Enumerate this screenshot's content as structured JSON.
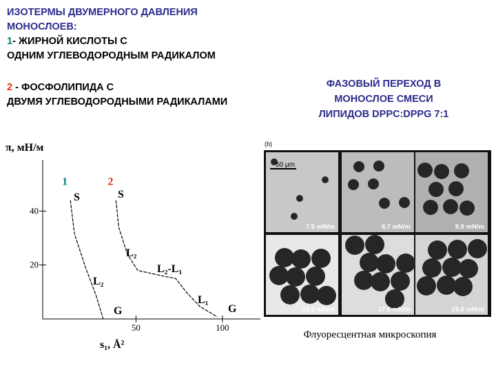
{
  "header": {
    "title_lines": [
      "ИЗОТЕРМЫ ДВУМЕРНОГО ДАВЛЕНИЯ",
      "МОНОСЛОЕВ:"
    ],
    "item1_lines": [
      "- ЖИРНОЙ КИСЛОТЫ С",
      "ОДНИМ УГЛЕВОДОРОДНЫМ РАДИКАЛОМ"
    ],
    "item2_lines": [
      " - ФОСФОЛИПИДА С",
      "ДВУМЯ УГЛЕВОДОРОДНЫМИ РАДИКАЛАМИ"
    ]
  },
  "right_title_lines": [
    "ФАЗОВЫЙ ПЕРЕХОД В",
    "МОНОСЛОЕ СМЕСИ",
    "ЛИПИДОВ DPPC:DPPG 7:1"
  ],
  "micrograph": {
    "panel_label": "(b)",
    "scale_bar": "50 μm",
    "pressures": [
      "7.5 mN/m",
      "8.7 mN/m",
      "9.9 mN/m",
      "13.2 mN/m",
      "17.6 mN/m",
      "25.0 mN/m"
    ],
    "caption": "Флуоресцентная микроскопия"
  },
  "chart_data": {
    "type": "line",
    "y_label": "π, мН/м",
    "x_label": "s₁, Å²",
    "xlim": [
      -4,
      122
    ],
    "ylim": [
      0,
      59
    ],
    "xticks": [
      50,
      100
    ],
    "yticks": [
      20,
      40
    ],
    "series": [
      {
        "name": "1",
        "color": "#000000",
        "label_color": "#008080",
        "x": [
          12,
          14.4,
          21,
          27,
          31
        ],
        "values": [
          44,
          31.5,
          18.7,
          8.5,
          0
        ]
      },
      {
        "name": "2",
        "color": "#000000",
        "label_color": "#e03010",
        "x": [
          38.4,
          40,
          45,
          51,
          65,
          73,
          79,
          87,
          97
        ],
        "values": [
          44,
          34,
          24,
          18,
          16,
          15,
          10,
          4.6,
          0.8
        ]
      }
    ],
    "annotations": [
      "S",
      "S",
      "L₂",
      "L₂",
      "L₂-L₁",
      "L₁",
      "G",
      "G"
    ]
  }
}
